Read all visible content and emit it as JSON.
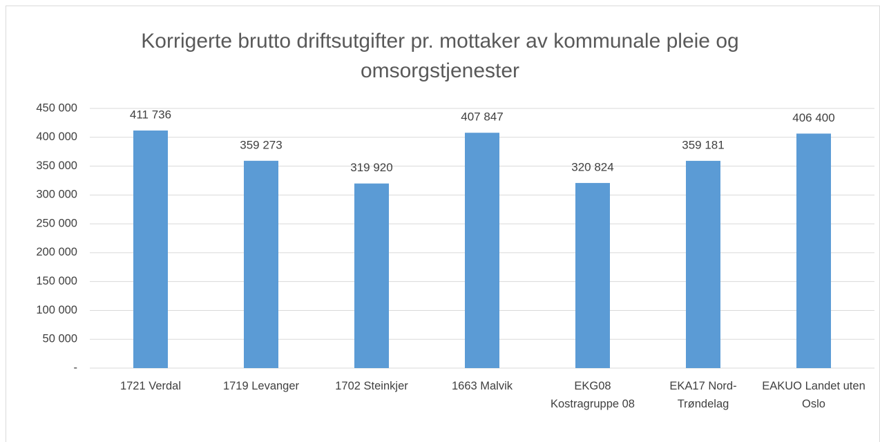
{
  "chart_data": {
    "type": "bar",
    "title": "Korrigerte brutto driftsutgifter pr. mottaker av kommunale pleie og omsorgstjenester",
    "categories": [
      "1721 Verdal",
      "1719 Levanger",
      "1702 Steinkjer",
      "1663 Malvik",
      "EKG08 Kostragruppe 08",
      "EKA17 Nord-Trøndelag",
      "EAKUO Landet uten Oslo"
    ],
    "values": [
      411736,
      359273,
      319920,
      407847,
      320824,
      359181,
      406400
    ],
    "value_labels": [
      "411 736",
      "359 273",
      "319 920",
      "407 847",
      "320 824",
      "359 181",
      "406 400"
    ],
    "color": "#5b9bd5",
    "ylim": [
      0,
      450000
    ],
    "yticks": [
      {
        "value": 0,
        "label": "-"
      },
      {
        "value": 50000,
        "label": "50 000"
      },
      {
        "value": 100000,
        "label": "100 000"
      },
      {
        "value": 150000,
        "label": "150 000"
      },
      {
        "value": 200000,
        "label": "200 000"
      },
      {
        "value": 250000,
        "label": "250 000"
      },
      {
        "value": 300000,
        "label": "300 000"
      },
      {
        "value": 350000,
        "label": "350 000"
      },
      {
        "value": 400000,
        "label": "400 000"
      },
      {
        "value": 450000,
        "label": "450 000"
      }
    ],
    "grid": true
  }
}
